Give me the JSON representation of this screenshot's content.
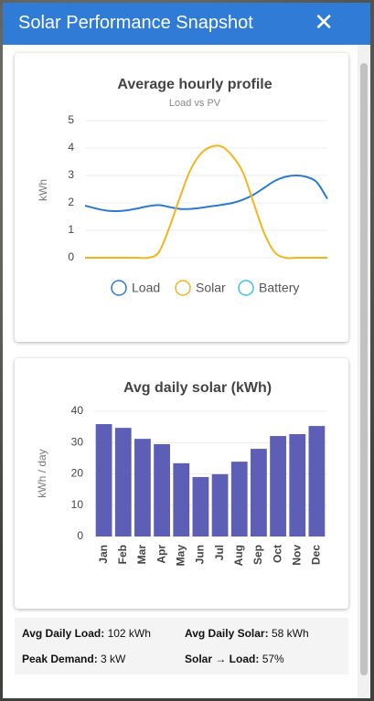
{
  "header": {
    "title": "Solar Performance Snapshot",
    "close": "✕"
  },
  "chart_data": [
    {
      "type": "line",
      "title": "Average hourly profile",
      "subtitle": "Load vs PV",
      "y_label": "kWh",
      "ylim": [
        0,
        5
      ],
      "yticks": [
        0,
        1,
        2,
        3,
        4,
        5
      ],
      "grid": true,
      "series": [
        {
          "name": "Load",
          "color": "#2a7bd1",
          "values": [
            1.9,
            1.8,
            1.72,
            1.7,
            1.73,
            1.8,
            1.88,
            1.92,
            1.85,
            1.78,
            1.78,
            1.82,
            1.88,
            1.93,
            2.0,
            2.12,
            2.3,
            2.55,
            2.8,
            2.95,
            3.0,
            2.95,
            2.75,
            2.15
          ]
        },
        {
          "name": "Solar",
          "color": "#f2b61d",
          "values": [
            0,
            0,
            0,
            0,
            0,
            0,
            0,
            0.2,
            1.1,
            2.2,
            3.2,
            3.8,
            4.05,
            4.05,
            3.7,
            3.1,
            2.0,
            0.9,
            0.2,
            0,
            0,
            0,
            0,
            0
          ]
        },
        {
          "name": "Battery",
          "color": "#3ec1e6",
          "values": [
            null,
            null,
            null,
            null,
            null,
            null,
            null,
            null,
            null,
            null,
            null,
            null,
            null,
            null,
            null,
            null,
            null,
            null,
            null,
            null,
            null,
            null,
            null,
            null
          ]
        }
      ]
    },
    {
      "type": "bar",
      "title": "Avg daily solar (kWh)",
      "y_label": "kWh / day",
      "categories": [
        "Jan",
        "Feb",
        "Mar",
        "Apr",
        "May",
        "Jun",
        "Jul",
        "Aug",
        "Sep",
        "Oct",
        "Nov",
        "Dec"
      ],
      "values": [
        35.9,
        34.7,
        31.2,
        29.5,
        23.4,
        19.0,
        19.9,
        23.9,
        28.0,
        32.1,
        32.7,
        35.3
      ],
      "color": "#5c5fb5",
      "ylim": [
        0,
        40
      ],
      "yticks": [
        0,
        10,
        20,
        30,
        40
      ],
      "grid": true
    }
  ],
  "stats": [
    {
      "label": "Avg Daily Load:",
      "value": "102 kWh"
    },
    {
      "label": "Avg Daily Solar:",
      "value": "58 kWh"
    },
    {
      "label": "Peak Demand:",
      "value": "3 kW"
    },
    {
      "label": "Solar → Load:",
      "value": "57%"
    }
  ]
}
